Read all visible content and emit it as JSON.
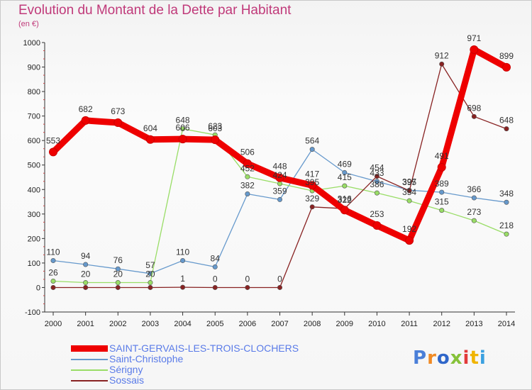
{
  "title": "Evolution du Montant de la Dette par Habitant",
  "subtitle": "(en €)",
  "brand": {
    "letters": [
      "P",
      "r",
      "o",
      "x",
      "i",
      "t",
      "i"
    ],
    "colors": [
      "#4a7fd8",
      "#f08a24",
      "#2f66c9",
      "#86c23a",
      "#e23a3a",
      "#f0b400",
      "#3aa0e0"
    ]
  },
  "chart_data": {
    "type": "line",
    "x": [
      2000,
      2001,
      2002,
      2003,
      2004,
      2005,
      2006,
      2007,
      2008,
      2009,
      2010,
      2011,
      2012,
      2013,
      2014
    ],
    "ylim": [
      -100,
      1000
    ],
    "yticks": [
      -100,
      0,
      100,
      200,
      300,
      400,
      500,
      600,
      700,
      800,
      900,
      1000
    ],
    "grid": false,
    "legend_position": "bottom-left",
    "series": [
      {
        "name": "SAINT-GERVAIS-LES-TROIS-CLOCHERS",
        "color": "#ee0000",
        "values": [
          553,
          682,
          673,
          604,
          606,
          603,
          506,
          448,
          417,
          316,
          253,
          192,
          491,
          971,
          899
        ],
        "labels": [
          "553",
          "682",
          "673",
          "604",
          "606",
          "603",
          "506",
          "448",
          "417",
          "316",
          "253",
          "192",
          "491",
          "971",
          "899"
        ]
      },
      {
        "name": "Saint-Christophe",
        "color": "#6699cc",
        "values": [
          110,
          94,
          76,
          57,
          110,
          84,
          382,
          359,
          564,
          469,
          433,
          397,
          389,
          366,
          348
        ],
        "labels": [
          "110",
          "94",
          "76",
          "57",
          "110",
          "84",
          "382",
          "359",
          "564",
          "469",
          "433",
          "397",
          "389",
          "366",
          "348"
        ]
      },
      {
        "name": "Sérigny",
        "color": "#99dd66",
        "values": [
          26,
          20,
          20,
          20,
          648,
          623,
          452,
          424,
          395,
          415,
          386,
          354,
          315,
          273,
          218
        ],
        "labels": [
          "26",
          "20",
          "20",
          "20",
          "648",
          "623",
          "452",
          "424",
          "395",
          "415",
          "386",
          "354",
          "315",
          "273",
          "218"
        ]
      },
      {
        "name": "Sossais",
        "color": "#882222",
        "values": [
          0,
          0,
          0,
          0,
          1,
          0,
          0,
          0,
          329,
          322,
          454,
          395,
          912,
          698,
          648
        ],
        "labels": [
          "",
          "",
          "",
          "",
          "1",
          "0",
          "0",
          "0",
          "329",
          "322",
          "454",
          "395",
          "912",
          "698",
          "648"
        ]
      }
    ]
  }
}
